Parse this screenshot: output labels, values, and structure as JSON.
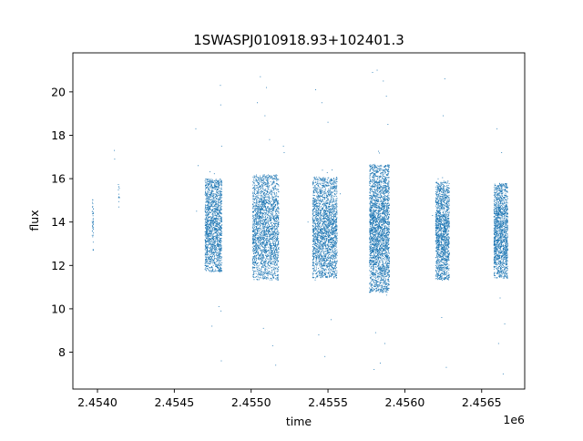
{
  "chart_data": {
    "type": "scatter",
    "title": "1SWASPJ010918.93+102401.3",
    "xlabel": "time",
    "ylabel": "flux",
    "x_offset_label": "1e6",
    "xlim": [
      2453840,
      2456780
    ],
    "ylim": [
      6.3,
      21.8
    ],
    "x_ticks": [
      2454000,
      2454500,
      2455000,
      2455500,
      2456000,
      2456500
    ],
    "x_tick_labels": [
      "2.4540",
      "2.4545",
      "2.4550",
      "2.4555",
      "2.4560",
      "2.4565"
    ],
    "y_ticks": [
      8,
      10,
      12,
      14,
      16,
      18,
      20
    ],
    "y_tick_labels": [
      "8",
      "10",
      "12",
      "14",
      "16",
      "18",
      "20"
    ],
    "grid": false,
    "marker_color": "#1f77b4",
    "seasons": [
      {
        "x_start": 2453966,
        "x_end": 2453974,
        "y_low": 12.6,
        "y_high": 15.3,
        "count": 40,
        "outliers": []
      },
      {
        "x_start": 2454135,
        "x_end": 2454145,
        "y_low": 14.5,
        "y_high": 15.8,
        "count": 12,
        "outliers": [
          [
            2454110,
            17.3
          ],
          [
            2454112,
            16.9
          ]
        ]
      },
      {
        "x_start": 2454700,
        "x_end": 2454810,
        "y_low": 11.6,
        "y_high": 16.1,
        "count": 1600,
        "outliers": [
          [
            2454640,
            18.3
          ],
          [
            2454655,
            16.6
          ],
          [
            2454645,
            14.5
          ],
          [
            2454745,
            9.2
          ],
          [
            2454790,
            10.1
          ],
          [
            2454800,
            20.3
          ],
          [
            2454802,
            19.4
          ],
          [
            2454806,
            7.6
          ],
          [
            2454808,
            17.5
          ],
          [
            2454804,
            9.9
          ]
        ]
      },
      {
        "x_start": 2455010,
        "x_end": 2455180,
        "y_low": 11.2,
        "y_high": 16.3,
        "count": 2200,
        "outliers": [
          [
            2455060,
            20.7
          ],
          [
            2455090,
            18.9
          ],
          [
            2455120,
            17.8
          ],
          [
            2455140,
            8.3
          ],
          [
            2455160,
            7.4
          ],
          [
            2455080,
            9.1
          ],
          [
            2455210,
            17.5
          ],
          [
            2455215,
            17.2
          ],
          [
            2455040,
            19.5
          ],
          [
            2455100,
            20.2
          ]
        ]
      },
      {
        "x_start": 2455400,
        "x_end": 2455560,
        "y_low": 11.3,
        "y_high": 16.2,
        "count": 2200,
        "outliers": [
          [
            2455420,
            20.1
          ],
          [
            2455460,
            19.5
          ],
          [
            2455500,
            18.6
          ],
          [
            2455440,
            8.8
          ],
          [
            2455480,
            7.8
          ],
          [
            2455520,
            9.5
          ],
          [
            2455580,
            15.3
          ],
          [
            2455370,
            14.0
          ]
        ]
      },
      {
        "x_start": 2455770,
        "x_end": 2455900,
        "y_low": 10.6,
        "y_high": 16.8,
        "count": 2600,
        "outliers": [
          [
            2455790,
            20.9
          ],
          [
            2455820,
            21.0
          ],
          [
            2455860,
            20.5
          ],
          [
            2455880,
            19.8
          ],
          [
            2455800,
            7.2
          ],
          [
            2455840,
            7.5
          ],
          [
            2455870,
            8.4
          ],
          [
            2455810,
            8.9
          ],
          [
            2455890,
            18.5
          ]
        ]
      },
      {
        "x_start": 2456200,
        "x_end": 2456290,
        "y_low": 11.2,
        "y_high": 16.0,
        "count": 1500,
        "outliers": [
          [
            2456260,
            20.6
          ],
          [
            2456250,
            18.9
          ],
          [
            2456270,
            7.3
          ],
          [
            2456240,
            9.6
          ],
          [
            2456180,
            14.3
          ]
        ]
      },
      {
        "x_start": 2456580,
        "x_end": 2456670,
        "y_low": 11.3,
        "y_high": 15.9,
        "count": 1500,
        "outliers": [
          [
            2456600,
            18.3
          ],
          [
            2456630,
            17.2
          ],
          [
            2456650,
            9.3
          ],
          [
            2456610,
            8.4
          ],
          [
            2456640,
            7.0
          ],
          [
            2456620,
            10.5
          ]
        ]
      }
    ]
  }
}
